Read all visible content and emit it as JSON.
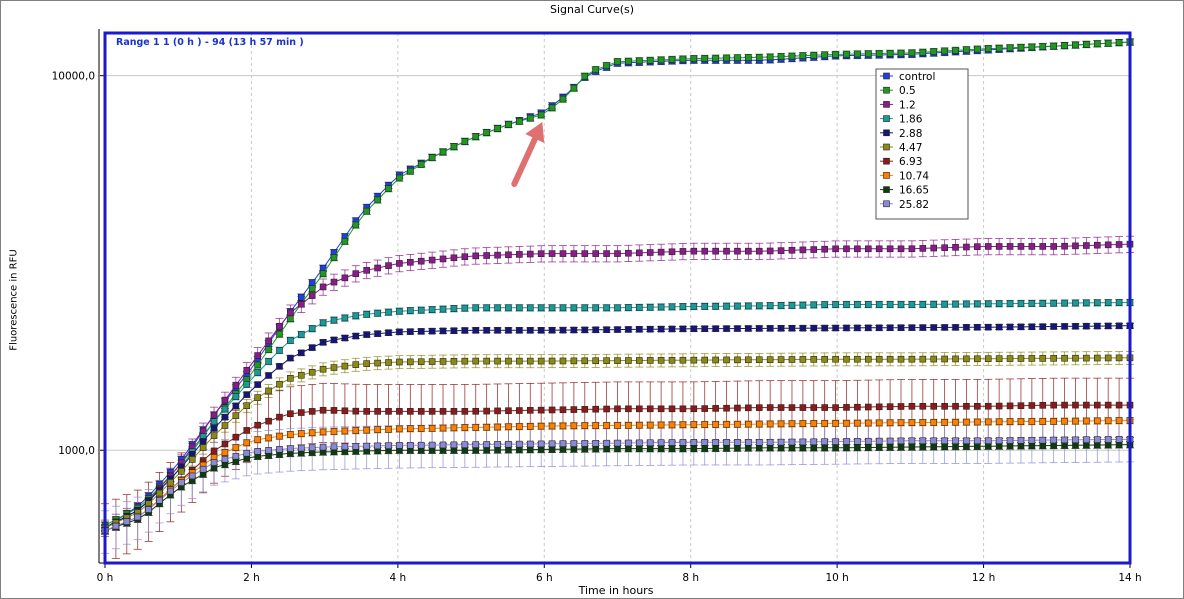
{
  "chart_data": {
    "type": "line",
    "title": "Signal Curve(s)",
    "range_label": "Range 1 1 (0 h  ) - 94 (13 h 57 min  )",
    "xlabel": "Time in hours",
    "ylabel": "Fluorescence in RFU",
    "xlim": [
      0,
      14
    ],
    "ylim_log": [
      500,
      13000
    ],
    "y_scale": "log",
    "x_ticks": [
      {
        "value": 0,
        "label": "0 h"
      },
      {
        "value": 2,
        "label": "2 h"
      },
      {
        "value": 4,
        "label": "4 h"
      },
      {
        "value": 6,
        "label": "6 h"
      },
      {
        "value": 8,
        "label": "8 h"
      },
      {
        "value": 10,
        "label": "10 h"
      },
      {
        "value": 12,
        "label": "12 h"
      },
      {
        "value": 14,
        "label": "14 h"
      }
    ],
    "y_ticks": [
      {
        "value": 1000,
        "label": "1000,0"
      },
      {
        "value": 10000,
        "label": "10000,0"
      }
    ],
    "grid": true,
    "legend_position": "top-right",
    "series": [
      {
        "name": "control",
        "color": "#1f3fe0",
        "err": 0.02,
        "points": [
          [
            0,
            620
          ],
          [
            0.5,
            720
          ],
          [
            1,
            920
          ],
          [
            1.5,
            1250
          ],
          [
            2,
            1650
          ],
          [
            2.5,
            2300
          ],
          [
            3,
            3100
          ],
          [
            3.5,
            4300
          ],
          [
            4,
            5400
          ],
          [
            4.5,
            6100
          ],
          [
            5,
            6800
          ],
          [
            5.5,
            7400
          ],
          [
            6,
            8000
          ],
          [
            6.3,
            8900
          ],
          [
            6.6,
            10100
          ],
          [
            7,
            10800
          ],
          [
            8,
            11000
          ],
          [
            9,
            11000
          ],
          [
            10,
            11300
          ],
          [
            11,
            11400
          ],
          [
            12,
            11700
          ],
          [
            13,
            12000
          ],
          [
            14,
            12300
          ]
        ]
      },
      {
        "name": "0.5",
        "color": "#1f9a1f",
        "err": 0.02,
        "points": [
          [
            0,
            630
          ],
          [
            0.5,
            710
          ],
          [
            1,
            900
          ],
          [
            1.5,
            1200
          ],
          [
            2,
            1600
          ],
          [
            2.5,
            2200
          ],
          [
            3,
            3000
          ],
          [
            3.5,
            4200
          ],
          [
            4,
            5300
          ],
          [
            4.5,
            6100
          ],
          [
            5,
            6800
          ],
          [
            5.5,
            7400
          ],
          [
            6,
            7900
          ],
          [
            6.3,
            8800
          ],
          [
            6.6,
            10200
          ],
          [
            7,
            10900
          ],
          [
            8,
            11100
          ],
          [
            9,
            11200
          ],
          [
            10,
            11400
          ],
          [
            11,
            11500
          ],
          [
            12,
            11800
          ],
          [
            13,
            12000
          ],
          [
            14,
            12300
          ]
        ]
      },
      {
        "name": "1.2",
        "color": "#8b1a8b",
        "err": 0.05,
        "points": [
          [
            0,
            620
          ],
          [
            0.5,
            700
          ],
          [
            1,
            900
          ],
          [
            1.5,
            1250
          ],
          [
            2,
            1700
          ],
          [
            2.5,
            2300
          ],
          [
            3,
            2750
          ],
          [
            3.5,
            3000
          ],
          [
            4,
            3150
          ],
          [
            5,
            3300
          ],
          [
            6,
            3350
          ],
          [
            7,
            3350
          ],
          [
            8,
            3400
          ],
          [
            9,
            3400
          ],
          [
            10,
            3450
          ],
          [
            11,
            3450
          ],
          [
            12,
            3500
          ],
          [
            13,
            3500
          ],
          [
            14,
            3550
          ]
        ]
      },
      {
        "name": "1.86",
        "color": "#1a9a9a",
        "err": 0.02,
        "points": [
          [
            0,
            620
          ],
          [
            0.5,
            700
          ],
          [
            1,
            880
          ],
          [
            1.5,
            1200
          ],
          [
            2,
            1550
          ],
          [
            2.5,
            1950
          ],
          [
            3,
            2200
          ],
          [
            3.5,
            2300
          ],
          [
            4,
            2350
          ],
          [
            5,
            2400
          ],
          [
            6,
            2400
          ],
          [
            7,
            2400
          ],
          [
            8,
            2420
          ],
          [
            9,
            2430
          ],
          [
            10,
            2450
          ],
          [
            11,
            2450
          ],
          [
            12,
            2460
          ],
          [
            13,
            2470
          ],
          [
            14,
            2480
          ]
        ]
      },
      {
        "name": "2.88",
        "color": "#15157a",
        "err": 0.015,
        "points": [
          [
            0,
            620
          ],
          [
            0.5,
            700
          ],
          [
            1,
            880
          ],
          [
            1.5,
            1150
          ],
          [
            2,
            1450
          ],
          [
            2.5,
            1750
          ],
          [
            3,
            1950
          ],
          [
            3.5,
            2030
          ],
          [
            4,
            2070
          ],
          [
            5,
            2090
          ],
          [
            6,
            2090
          ],
          [
            7,
            2100
          ],
          [
            8,
            2110
          ],
          [
            9,
            2115
          ],
          [
            10,
            2120
          ],
          [
            11,
            2125
          ],
          [
            12,
            2130
          ],
          [
            13,
            2140
          ],
          [
            14,
            2150
          ]
        ]
      },
      {
        "name": "4.47",
        "color": "#8c8a12",
        "err": 0.04,
        "points": [
          [
            0,
            620
          ],
          [
            0.5,
            690
          ],
          [
            1,
            860
          ],
          [
            1.5,
            1100
          ],
          [
            2,
            1350
          ],
          [
            2.5,
            1550
          ],
          [
            3,
            1650
          ],
          [
            3.5,
            1700
          ],
          [
            4,
            1720
          ],
          [
            5,
            1730
          ],
          [
            6,
            1730
          ],
          [
            7,
            1735
          ],
          [
            8,
            1740
          ],
          [
            9,
            1745
          ],
          [
            10,
            1750
          ],
          [
            11,
            1750
          ],
          [
            12,
            1755
          ],
          [
            13,
            1760
          ],
          [
            14,
            1765
          ]
        ]
      },
      {
        "name": "6.93",
        "color": "#8b1a1a",
        "err": 0.18,
        "points": [
          [
            0,
            610
          ],
          [
            0.5,
            670
          ],
          [
            1,
            820
          ],
          [
            1.5,
            1000
          ],
          [
            2,
            1150
          ],
          [
            2.5,
            1250
          ],
          [
            3,
            1280
          ],
          [
            3.5,
            1270
          ],
          [
            4,
            1270
          ],
          [
            5,
            1270
          ],
          [
            6,
            1280
          ],
          [
            7,
            1290
          ],
          [
            8,
            1290
          ],
          [
            9,
            1300
          ],
          [
            10,
            1300
          ],
          [
            11,
            1310
          ],
          [
            12,
            1310
          ],
          [
            13,
            1320
          ],
          [
            14,
            1320
          ]
        ]
      },
      {
        "name": "10.74",
        "color": "#ff8000",
        "err": 0.02,
        "points": [
          [
            0,
            610
          ],
          [
            0.5,
            670
          ],
          [
            1,
            820
          ],
          [
            1.5,
            960
          ],
          [
            2,
            1060
          ],
          [
            2.5,
            1100
          ],
          [
            3,
            1120
          ],
          [
            3.5,
            1130
          ],
          [
            4,
            1140
          ],
          [
            5,
            1150
          ],
          [
            6,
            1160
          ],
          [
            7,
            1165
          ],
          [
            8,
            1170
          ],
          [
            9,
            1175
          ],
          [
            10,
            1180
          ],
          [
            11,
            1185
          ],
          [
            12,
            1190
          ],
          [
            13,
            1195
          ],
          [
            14,
            1200
          ]
        ]
      },
      {
        "name": "16.65",
        "color": "#0d3d0d",
        "err": 0.02,
        "points": [
          [
            0,
            610
          ],
          [
            0.5,
            660
          ],
          [
            1,
            790
          ],
          [
            1.5,
            900
          ],
          [
            2,
            960
          ],
          [
            2.5,
            980
          ],
          [
            3,
            990
          ],
          [
            3.5,
            995
          ],
          [
            4,
            1000
          ],
          [
            5,
            1000
          ],
          [
            6,
            1005
          ],
          [
            7,
            1010
          ],
          [
            8,
            1010
          ],
          [
            9,
            1015
          ],
          [
            10,
            1015
          ],
          [
            11,
            1020
          ],
          [
            12,
            1025
          ],
          [
            13,
            1030
          ],
          [
            14,
            1035
          ]
        ]
      },
      {
        "name": "25.82",
        "color": "#8a8ad8",
        "err": 0.13,
        "points": [
          [
            0,
            610
          ],
          [
            0.5,
            670
          ],
          [
            1,
            810
          ],
          [
            1.5,
            930
          ],
          [
            2,
            990
          ],
          [
            2.5,
            1010
          ],
          [
            3,
            1020
          ],
          [
            3.5,
            1025
          ],
          [
            4,
            1030
          ],
          [
            5,
            1035
          ],
          [
            6,
            1040
          ],
          [
            7,
            1045
          ],
          [
            8,
            1050
          ],
          [
            9,
            1050
          ],
          [
            10,
            1055
          ],
          [
            11,
            1060
          ],
          [
            12,
            1060
          ],
          [
            13,
            1065
          ],
          [
            14,
            1070
          ]
        ]
      }
    ],
    "annotation": {
      "type": "arrow",
      "color": "#e07070",
      "target": [
        6.0,
        8000
      ]
    }
  }
}
